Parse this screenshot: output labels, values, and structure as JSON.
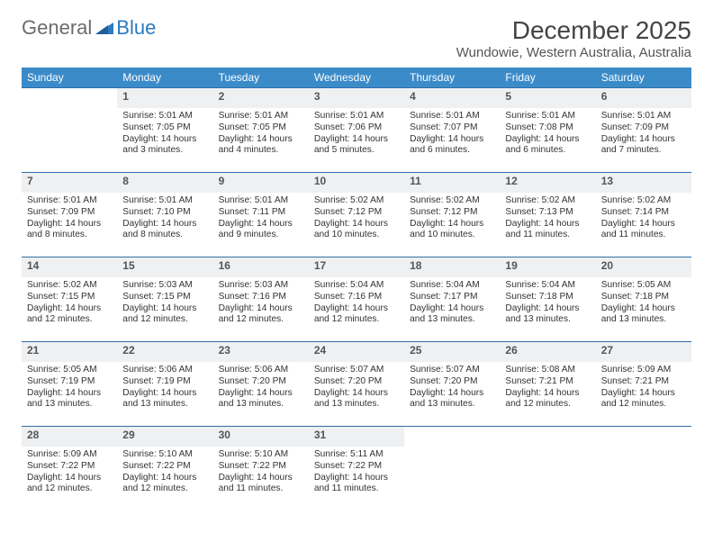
{
  "logo": {
    "text1": "General",
    "text2": "Blue"
  },
  "title": "December 2025",
  "subtitle": "Wundowie, Western Australia, Australia",
  "colors": {
    "header_bg": "#3b8bc9",
    "header_text": "#ffffff",
    "daynum_bg": "#eef0f2",
    "row_border": "#2f6ea8",
    "logo_blue": "#2b7bbf",
    "body_text": "#333333"
  },
  "typography": {
    "title_fontsize": 28,
    "subtitle_fontsize": 15,
    "dayheader_fontsize": 12,
    "cell_fontsize": 10.2
  },
  "day_headers": [
    "Sunday",
    "Monday",
    "Tuesday",
    "Wednesday",
    "Thursday",
    "Friday",
    "Saturday"
  ],
  "weeks": [
    [
      null,
      {
        "n": "1",
        "sr": "5:01 AM",
        "ss": "7:05 PM",
        "dl": "14 hours and 3 minutes."
      },
      {
        "n": "2",
        "sr": "5:01 AM",
        "ss": "7:05 PM",
        "dl": "14 hours and 4 minutes."
      },
      {
        "n": "3",
        "sr": "5:01 AM",
        "ss": "7:06 PM",
        "dl": "14 hours and 5 minutes."
      },
      {
        "n": "4",
        "sr": "5:01 AM",
        "ss": "7:07 PM",
        "dl": "14 hours and 6 minutes."
      },
      {
        "n": "5",
        "sr": "5:01 AM",
        "ss": "7:08 PM",
        "dl": "14 hours and 6 minutes."
      },
      {
        "n": "6",
        "sr": "5:01 AM",
        "ss": "7:09 PM",
        "dl": "14 hours and 7 minutes."
      }
    ],
    [
      {
        "n": "7",
        "sr": "5:01 AM",
        "ss": "7:09 PM",
        "dl": "14 hours and 8 minutes."
      },
      {
        "n": "8",
        "sr": "5:01 AM",
        "ss": "7:10 PM",
        "dl": "14 hours and 8 minutes."
      },
      {
        "n": "9",
        "sr": "5:01 AM",
        "ss": "7:11 PM",
        "dl": "14 hours and 9 minutes."
      },
      {
        "n": "10",
        "sr": "5:02 AM",
        "ss": "7:12 PM",
        "dl": "14 hours and 10 minutes."
      },
      {
        "n": "11",
        "sr": "5:02 AM",
        "ss": "7:12 PM",
        "dl": "14 hours and 10 minutes."
      },
      {
        "n": "12",
        "sr": "5:02 AM",
        "ss": "7:13 PM",
        "dl": "14 hours and 11 minutes."
      },
      {
        "n": "13",
        "sr": "5:02 AM",
        "ss": "7:14 PM",
        "dl": "14 hours and 11 minutes."
      }
    ],
    [
      {
        "n": "14",
        "sr": "5:02 AM",
        "ss": "7:15 PM",
        "dl": "14 hours and 12 minutes."
      },
      {
        "n": "15",
        "sr": "5:03 AM",
        "ss": "7:15 PM",
        "dl": "14 hours and 12 minutes."
      },
      {
        "n": "16",
        "sr": "5:03 AM",
        "ss": "7:16 PM",
        "dl": "14 hours and 12 minutes."
      },
      {
        "n": "17",
        "sr": "5:04 AM",
        "ss": "7:16 PM",
        "dl": "14 hours and 12 minutes."
      },
      {
        "n": "18",
        "sr": "5:04 AM",
        "ss": "7:17 PM",
        "dl": "14 hours and 13 minutes."
      },
      {
        "n": "19",
        "sr": "5:04 AM",
        "ss": "7:18 PM",
        "dl": "14 hours and 13 minutes."
      },
      {
        "n": "20",
        "sr": "5:05 AM",
        "ss": "7:18 PM",
        "dl": "14 hours and 13 minutes."
      }
    ],
    [
      {
        "n": "21",
        "sr": "5:05 AM",
        "ss": "7:19 PM",
        "dl": "14 hours and 13 minutes."
      },
      {
        "n": "22",
        "sr": "5:06 AM",
        "ss": "7:19 PM",
        "dl": "14 hours and 13 minutes."
      },
      {
        "n": "23",
        "sr": "5:06 AM",
        "ss": "7:20 PM",
        "dl": "14 hours and 13 minutes."
      },
      {
        "n": "24",
        "sr": "5:07 AM",
        "ss": "7:20 PM",
        "dl": "14 hours and 13 minutes."
      },
      {
        "n": "25",
        "sr": "5:07 AM",
        "ss": "7:20 PM",
        "dl": "14 hours and 13 minutes."
      },
      {
        "n": "26",
        "sr": "5:08 AM",
        "ss": "7:21 PM",
        "dl": "14 hours and 12 minutes."
      },
      {
        "n": "27",
        "sr": "5:09 AM",
        "ss": "7:21 PM",
        "dl": "14 hours and 12 minutes."
      }
    ],
    [
      {
        "n": "28",
        "sr": "5:09 AM",
        "ss": "7:22 PM",
        "dl": "14 hours and 12 minutes."
      },
      {
        "n": "29",
        "sr": "5:10 AM",
        "ss": "7:22 PM",
        "dl": "14 hours and 12 minutes."
      },
      {
        "n": "30",
        "sr": "5:10 AM",
        "ss": "7:22 PM",
        "dl": "14 hours and 11 minutes."
      },
      {
        "n": "31",
        "sr": "5:11 AM",
        "ss": "7:22 PM",
        "dl": "14 hours and 11 minutes."
      },
      null,
      null,
      null
    ]
  ]
}
